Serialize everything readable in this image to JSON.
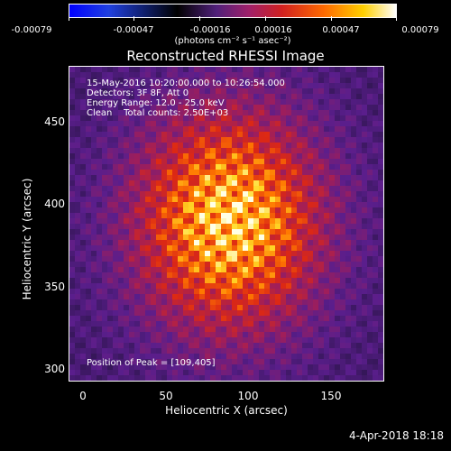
{
  "colorbar": {
    "ticks": [
      "-0.00079",
      "-0.00047",
      "-0.00016",
      "0.00016",
      "0.00047",
      "0.00079"
    ],
    "units": "(photons cm⁻² s⁻¹ asec⁻²)"
  },
  "title": "Reconstructed RHESSI Image",
  "info": {
    "time": "15-May-2016 10:20:00.000 to 10:26:54.000",
    "detectors": "Detectors: 3F 8F, Att 0",
    "energy": "Energy Range: 12.0 - 25.0 keV",
    "clean": "Clean    Total counts: 2.50E+03",
    "peak": "Position of Peak = [109,405]"
  },
  "axes": {
    "xlabel": "Heliocentric X (arcsec)",
    "ylabel": "Heliocentric Y (arcsec)",
    "xticks": [
      "0",
      "50",
      "100",
      "150"
    ],
    "yticks": [
      "300",
      "350",
      "400",
      "450"
    ]
  },
  "footer": {
    "datestamp": "4-Apr-2018 18:18"
  }
}
